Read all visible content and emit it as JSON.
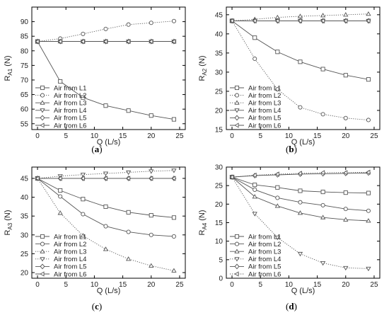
{
  "chart_data": [
    {
      "type": "line",
      "caption_label": "a",
      "ylabel_main": "R",
      "ylabel_sub": "A1",
      "ylabel_unit": "(N)",
      "xlabel": "Q  (L/s)",
      "xlim": [
        -1,
        26
      ],
      "ylim": [
        53,
        95
      ],
      "xticks": [
        0,
        5,
        10,
        15,
        20,
        25
      ],
      "yticks": [
        55,
        60,
        65,
        70,
        75,
        80,
        85,
        90
      ],
      "legend_position": "bottom-left",
      "x": [
        0,
        4,
        8,
        12,
        16,
        20,
        24
      ],
      "series": [
        {
          "name": "Air from L1",
          "marker": "square",
          "line": "solid",
          "values": [
            83.2,
            69.5,
            64.0,
            61.2,
            59.5,
            57.8,
            56.5
          ]
        },
        {
          "name": "Air from L2",
          "marker": "circle",
          "line": "dotted",
          "values": [
            83.2,
            84.2,
            85.8,
            87.5,
            89.0,
            89.6,
            90.2
          ]
        },
        {
          "name": "Air from L3",
          "marker": "triangle-up",
          "line": "solid",
          "values": [
            83.2,
            83.2,
            83.2,
            83.2,
            83.2,
            83.2,
            83.2
          ]
        },
        {
          "name": "Air from L4",
          "marker": "triangle-down",
          "line": "solid",
          "values": [
            83.2,
            83.2,
            83.2,
            83.2,
            83.2,
            83.2,
            83.2
          ]
        },
        {
          "name": "Air from L5",
          "marker": "diamond",
          "line": "solid",
          "values": [
            83.2,
            83.2,
            83.2,
            83.2,
            83.2,
            83.2,
            83.2
          ]
        },
        {
          "name": "Air from L6",
          "marker": "triangle-left",
          "line": "solid",
          "values": [
            83.2,
            83.2,
            83.2,
            83.2,
            83.2,
            83.2,
            83.2
          ]
        }
      ]
    },
    {
      "type": "line",
      "caption_label": "b",
      "ylabel_main": "R",
      "ylabel_sub": "A2",
      "ylabel_unit": "(N)",
      "xlabel": "Q  (L/s)",
      "xlim": [
        -1,
        26
      ],
      "ylim": [
        15,
        47
      ],
      "xticks": [
        0,
        5,
        10,
        15,
        20,
        25
      ],
      "yticks": [
        15,
        20,
        25,
        30,
        35,
        40,
        45
      ],
      "legend_position": "bottom-left",
      "x": [
        0,
        4,
        8,
        12,
        16,
        20,
        24
      ],
      "series": [
        {
          "name": "Air from L1",
          "marker": "square",
          "line": "solid",
          "values": [
            43.4,
            39.0,
            35.3,
            32.7,
            30.8,
            29.2,
            28.1
          ]
        },
        {
          "name": "Air from L2",
          "marker": "circle",
          "line": "dotted",
          "values": [
            43.4,
            33.5,
            25.5,
            20.8,
            19.0,
            18.0,
            17.5
          ]
        },
        {
          "name": "Air from L3",
          "marker": "triangle-up",
          "line": "dotted",
          "values": [
            43.4,
            43.8,
            44.3,
            44.6,
            44.8,
            45.0,
            45.2
          ]
        },
        {
          "name": "Air from L4",
          "marker": "triangle-down",
          "line": "solid",
          "values": [
            43.4,
            43.4,
            43.4,
            43.4,
            43.4,
            43.4,
            43.4
          ]
        },
        {
          "name": "Air from L5",
          "marker": "diamond",
          "line": "solid",
          "values": [
            43.4,
            43.4,
            43.4,
            43.4,
            43.4,
            43.4,
            43.4
          ]
        },
        {
          "name": "Air from L6",
          "marker": "triangle-left",
          "line": "solid",
          "values": [
            43.4,
            43.4,
            43.4,
            43.4,
            43.4,
            43.4,
            43.4
          ]
        }
      ]
    },
    {
      "type": "line",
      "caption_label": "c",
      "ylabel_main": "R",
      "ylabel_sub": "A3",
      "ylabel_unit": "(N)",
      "xlabel": "Q  (L/s)",
      "xlim": [
        -1,
        26
      ],
      "ylim": [
        18.5,
        48
      ],
      "xticks": [
        0,
        5,
        10,
        15,
        20,
        25
      ],
      "yticks": [
        20,
        25,
        30,
        35,
        40,
        45
      ],
      "legend_position": "bottom-left",
      "x": [
        0,
        4,
        8,
        12,
        16,
        20,
        24
      ],
      "series": [
        {
          "name": "Air from L1",
          "marker": "square",
          "line": "solid",
          "values": [
            45.0,
            41.8,
            39.5,
            37.5,
            36.0,
            35.2,
            34.6
          ]
        },
        {
          "name": "Air from L2",
          "marker": "circle",
          "line": "solid",
          "values": [
            45.0,
            40.2,
            35.5,
            32.3,
            30.8,
            30.0,
            29.6
          ]
        },
        {
          "name": "Air from L3",
          "marker": "triangle-up",
          "line": "dotted",
          "values": [
            45.0,
            35.8,
            29.8,
            26.2,
            23.6,
            21.8,
            20.5
          ]
        },
        {
          "name": "Air from L4",
          "marker": "triangle-down",
          "line": "dotted",
          "values": [
            45.0,
            45.6,
            46.0,
            46.3,
            46.6,
            46.9,
            47.1
          ]
        },
        {
          "name": "Air from L5",
          "marker": "diamond",
          "line": "solid",
          "values": [
            45.0,
            45.0,
            45.0,
            45.0,
            45.0,
            45.0,
            45.0
          ]
        },
        {
          "name": "Air from L6",
          "marker": "triangle-left",
          "line": "solid",
          "values": [
            45.0,
            45.0,
            45.0,
            45.0,
            45.0,
            45.0,
            45.0
          ]
        }
      ]
    },
    {
      "type": "line",
      "caption_label": "d",
      "ylabel_main": "R",
      "ylabel_sub": "A4",
      "ylabel_unit": "(N)",
      "xlabel": "Q  (L/s)",
      "xlim": [
        -1,
        26
      ],
      "ylim": [
        0,
        30
      ],
      "xticks": [
        0,
        5,
        10,
        15,
        20,
        25
      ],
      "yticks": [
        0,
        5,
        10,
        15,
        20,
        25,
        30
      ],
      "legend_position": "bottom-left",
      "x": [
        0,
        4,
        8,
        12,
        16,
        20,
        24
      ],
      "series": [
        {
          "name": "Air from L1",
          "marker": "square",
          "line": "solid",
          "values": [
            27.3,
            25.2,
            24.5,
            23.6,
            23.3,
            23.1,
            23.0
          ]
        },
        {
          "name": "Air from L2",
          "marker": "circle",
          "line": "solid",
          "values": [
            27.3,
            23.9,
            21.7,
            20.5,
            19.7,
            18.7,
            18.2
          ]
        },
        {
          "name": "Air from L3",
          "marker": "triangle-up",
          "line": "solid",
          "values": [
            27.3,
            22.0,
            19.5,
            17.6,
            16.4,
            15.8,
            15.5
          ]
        },
        {
          "name": "Air from L4",
          "marker": "triangle-down",
          "line": "dotted",
          "values": [
            27.3,
            17.4,
            11.0,
            6.6,
            4.1,
            2.8,
            2.6
          ]
        },
        {
          "name": "Air from L5",
          "marker": "diamond",
          "line": "solid",
          "values": [
            27.3,
            27.7,
            27.9,
            28.1,
            28.2,
            28.3,
            28.4
          ]
        },
        {
          "name": "Air from L6",
          "marker": "triangle-left",
          "line": "dotted",
          "values": [
            27.3,
            27.8,
            28.1,
            28.3,
            28.5,
            28.5,
            28.6
          ]
        }
      ]
    }
  ]
}
